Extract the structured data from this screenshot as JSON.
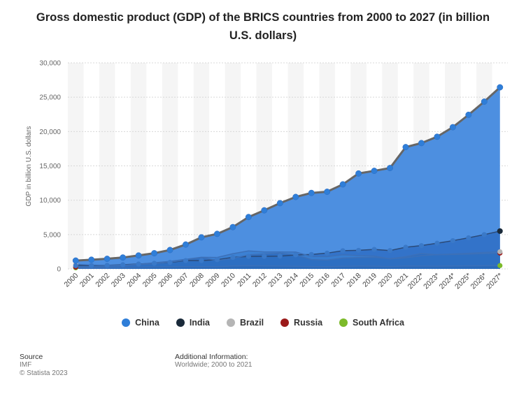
{
  "title": "Gross domestic product (GDP) of the BRICS countries from 2000 to 2027 (in billion U.S. dollars)",
  "source_heading": "Source",
  "source_lines": [
    "IMF",
    "© Statista 2023"
  ],
  "additional_heading": "Additional Information:",
  "additional_text": "Worldwide; 2000 to 2021",
  "chart_data": {
    "type": "area",
    "ylabel": "GDP in billion U.S. dollars",
    "xlabel": "",
    "ylim": [
      0,
      30000
    ],
    "yticks": [
      0,
      5000,
      10000,
      15000,
      20000,
      25000,
      30000
    ],
    "ytick_labels": [
      "0",
      "5,000",
      "10,000",
      "15,000",
      "20,000",
      "25,000",
      "30,000"
    ],
    "categories": [
      "2000",
      "2001",
      "2002",
      "2003",
      "2004",
      "2005",
      "2006",
      "2007",
      "2008",
      "2009",
      "2010",
      "2011",
      "2012",
      "2013",
      "2014",
      "2015",
      "2016",
      "2017",
      "2018",
      "2019",
      "2020",
      "2021",
      "2022*",
      "2023*",
      "2024*",
      "2025*",
      "2026*",
      "2027*"
    ],
    "legend_position": "bottom",
    "grid": true,
    "series": [
      {
        "name": "China",
        "color": "#2f7ed8",
        "values": [
          1211,
          1339,
          1471,
          1660,
          1955,
          2286,
          2752,
          3550,
          4594,
          5102,
          6087,
          7552,
          8532,
          9570,
          10476,
          11062,
          11233,
          12310,
          13895,
          14280,
          14688,
          17734,
          18321,
          19243,
          20633,
          22436,
          24356,
          26438
        ]
      },
      {
        "name": "India",
        "color": "#1a2a3a",
        "values": [
          468,
          485,
          515,
          608,
          709,
          820,
          940,
          1216,
          1199,
          1342,
          1676,
          1823,
          1828,
          1857,
          2039,
          2103,
          2295,
          2651,
          2703,
          2832,
          2668,
          3150,
          3390,
          3737,
          4113,
          4527,
          4990,
          5505
        ]
      },
      {
        "name": "Brazil",
        "color": "#b5b5b5",
        "values": [
          655,
          559,
          508,
          558,
          669,
          892,
          1107,
          1397,
          1695,
          1667,
          2208,
          2616,
          2465,
          2472,
          2456,
          1802,
          1796,
          2063,
          1917,
          1873,
          1448,
          1608,
          1920,
          2080,
          2170,
          2280,
          2390,
          2500
        ]
      },
      {
        "name": "Russia",
        "color": "#9b1a1a",
        "values": [
          260,
          307,
          345,
          430,
          591,
          764,
          990,
          1300,
          1661,
          1223,
          1525,
          2046,
          2191,
          2289,
          2059,
          1363,
          1283,
          1575,
          1653,
          1693,
          1489,
          1776,
          2240,
          2060,
          2100,
          2150,
          2230,
          2300
        ]
      },
      {
        "name": "South Africa",
        "color": "#7cba2a",
        "values": [
          152,
          135,
          129,
          198,
          256,
          288,
          304,
          333,
          316,
          330,
          417,
          458,
          434,
          401,
          381,
          347,
          323,
          381,
          404,
          389,
          337,
          419,
          405,
          400,
          420,
          440,
          460,
          480
        ]
      }
    ]
  }
}
